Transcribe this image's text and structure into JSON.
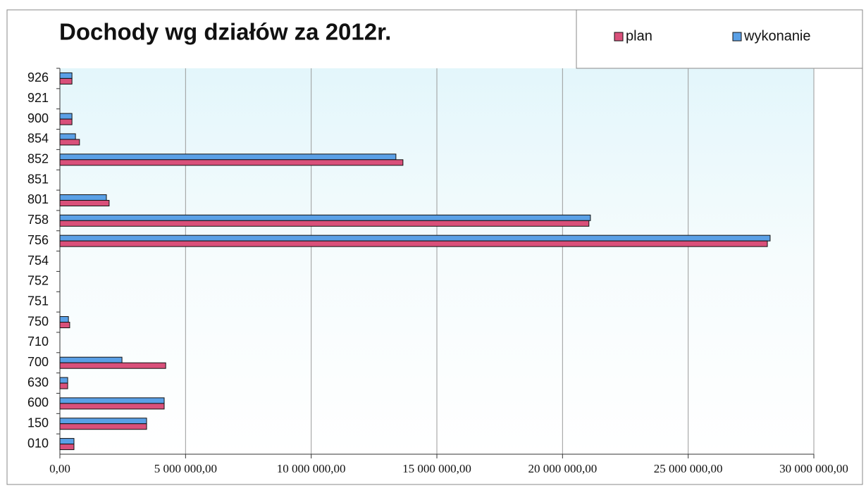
{
  "chart_data": {
    "type": "barh",
    "title": "Dochody wg działów za 2012r.",
    "categories": [
      "926",
      "921",
      "900",
      "854",
      "852",
      "851",
      "801",
      "758",
      "756",
      "754",
      "752",
      "751",
      "750",
      "710",
      "700",
      "630",
      "600",
      "150",
      "010"
    ],
    "series": [
      {
        "name": "wykonanie",
        "color": "#5aa0e6",
        "values": [
          480000,
          0,
          480000,
          620000,
          13370000,
          0,
          1850000,
          21110000,
          28260000,
          0,
          0,
          0,
          340000,
          0,
          2470000,
          310000,
          4150000,
          3450000,
          560000
        ]
      },
      {
        "name": "plan",
        "color": "#d9507a",
        "values": [
          480000,
          0,
          480000,
          780000,
          13650000,
          0,
          1960000,
          21050000,
          28150000,
          0,
          0,
          0,
          390000,
          0,
          4210000,
          310000,
          4150000,
          3450000,
          560000
        ]
      }
    ],
    "legend_order": [
      "plan",
      "wykonanie"
    ],
    "xlim": [
      0,
      30000000
    ],
    "xticks": [
      {
        "value": 0,
        "label": "0,00"
      },
      {
        "value": 5000000,
        "label": "5 000 000,00"
      },
      {
        "value": 10000000,
        "label": "10 000 000,00"
      },
      {
        "value": 15000000,
        "label": "15 000 000,00"
      },
      {
        "value": 20000000,
        "label": "20 000 000,00"
      },
      {
        "value": 25000000,
        "label": "25 000 000,00"
      },
      {
        "value": 30000000,
        "label": "30 000 000,00"
      }
    ],
    "grid": true,
    "legend": "top-right"
  }
}
